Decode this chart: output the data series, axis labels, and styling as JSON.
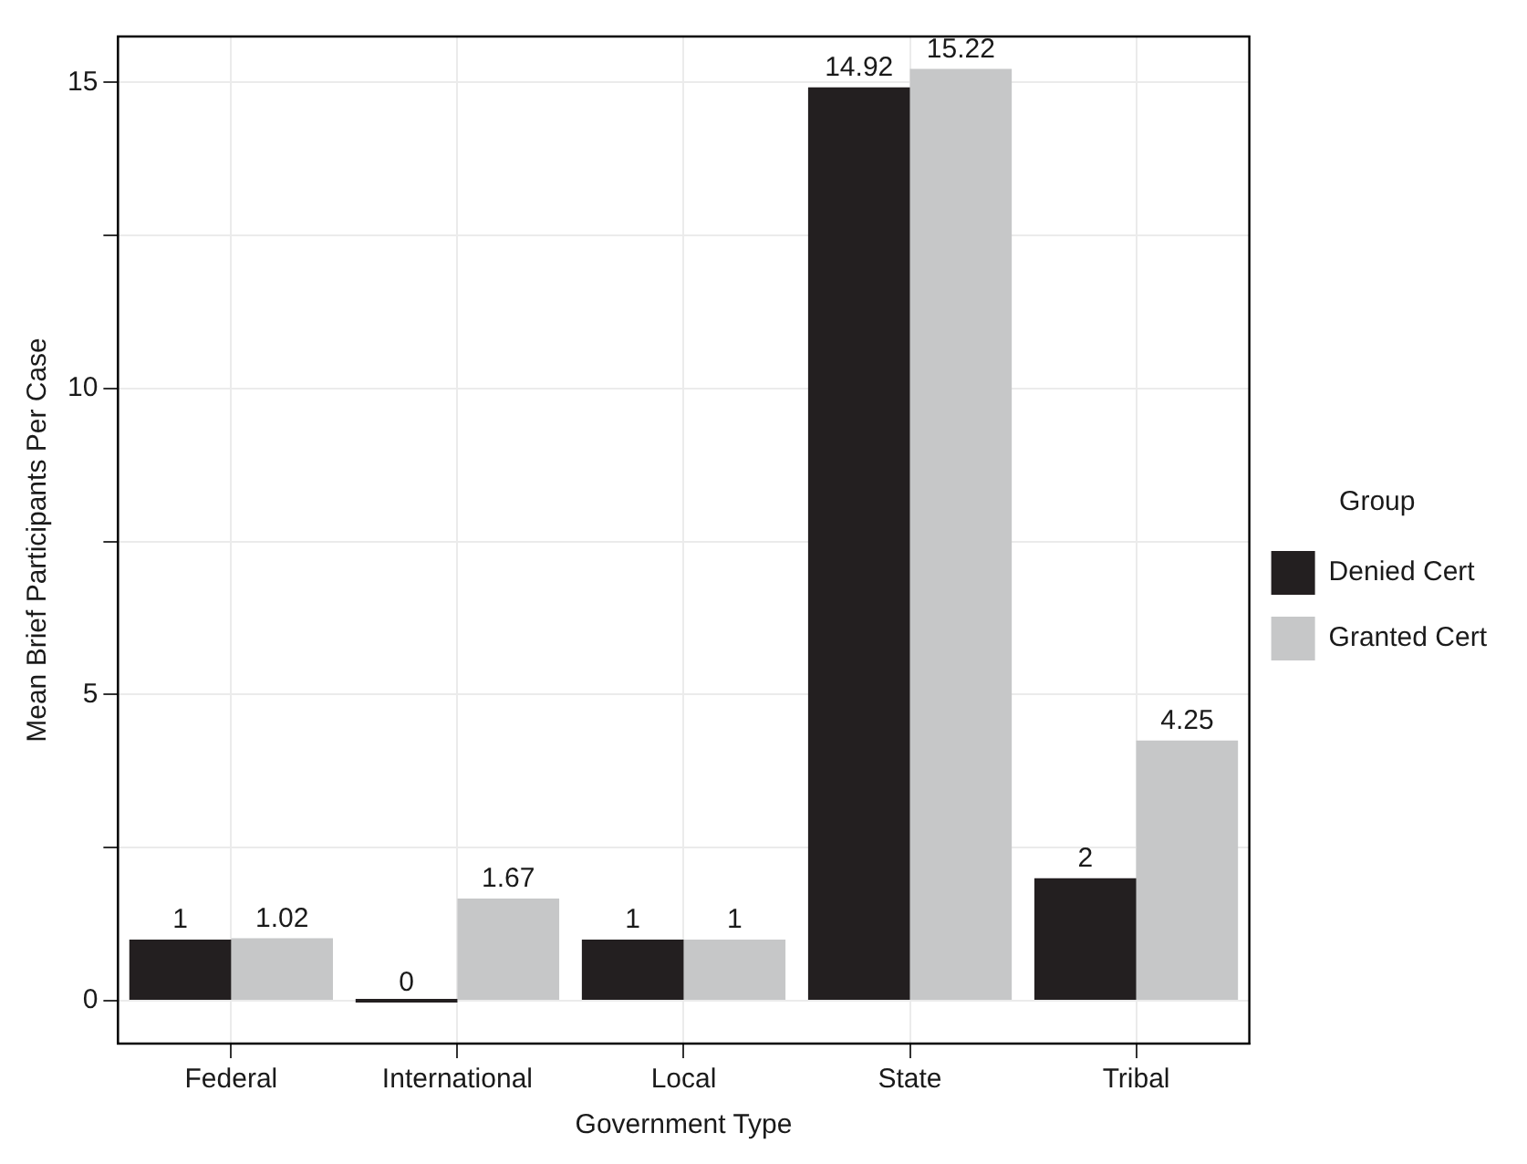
{
  "chart_data": {
    "type": "bar",
    "xlabel": "Government Type",
    "ylabel": "Mean Brief Participants Per Case",
    "legend_title": "Group",
    "categories": [
      "Federal",
      "International",
      "Local",
      "State",
      "Tribal"
    ],
    "series": [
      {
        "name": "Denied Cert",
        "color": "#231f20",
        "values": [
          1,
          0,
          1,
          14.92,
          2
        ]
      },
      {
        "name": "Granted Cert",
        "color": "#c6c7c8",
        "values": [
          1.02,
          1.67,
          1,
          15.22,
          4.25
        ]
      }
    ],
    "ylim": [
      -0.7,
      15.75
    ],
    "yticks": [
      0,
      {
        "value": 2.5,
        "label": null
      },
      5,
      {
        "value": 7.5,
        "label": null
      },
      10,
      {
        "value": 12.5,
        "label": null
      },
      15
    ],
    "grid": true,
    "legend": "right",
    "data_labels": true
  }
}
